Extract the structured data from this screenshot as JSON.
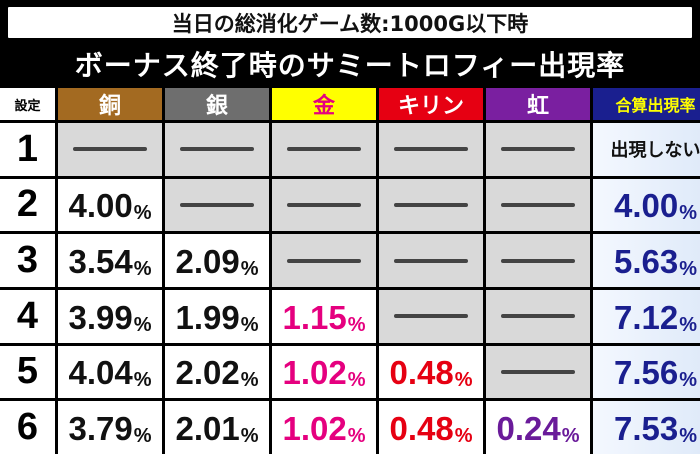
{
  "subtitle": "当日の総消化ゲーム数:1000G以下時",
  "title": "ボーナス終了時のサミートロフィー出現率",
  "headers": {
    "setting": "設定",
    "copper": "銅",
    "silver": "銀",
    "gold": "金",
    "kirin": "キリン",
    "niji": "虹",
    "total": "合算出現率"
  },
  "colors": {
    "copper": "#a36a21",
    "silver": "#6e6e6e",
    "gold": "#ffff00",
    "kirin": "#e60012",
    "niji": "#7a1fa0",
    "total": "#1a1f8f"
  },
  "rows": [
    {
      "setting": "1",
      "copper": "",
      "silver": "",
      "gold": "",
      "kirin": "",
      "niji": "",
      "total": "出現しない"
    },
    {
      "setting": "2",
      "copper": "4.00",
      "silver": "",
      "gold": "",
      "kirin": "",
      "niji": "",
      "total": "4.00"
    },
    {
      "setting": "3",
      "copper": "3.54",
      "silver": "2.09",
      "gold": "",
      "kirin": "",
      "niji": "",
      "total": "5.63"
    },
    {
      "setting": "4",
      "copper": "3.99",
      "silver": "1.99",
      "gold": "1.15",
      "kirin": "",
      "niji": "",
      "total": "7.12"
    },
    {
      "setting": "5",
      "copper": "4.04",
      "silver": "2.02",
      "gold": "1.02",
      "kirin": "0.48",
      "niji": "",
      "total": "7.56"
    },
    {
      "setting": "6",
      "copper": "3.79",
      "silver": "2.01",
      "gold": "1.02",
      "kirin": "0.48",
      "niji": "0.24",
      "total": "7.53"
    }
  ],
  "unit": "%"
}
